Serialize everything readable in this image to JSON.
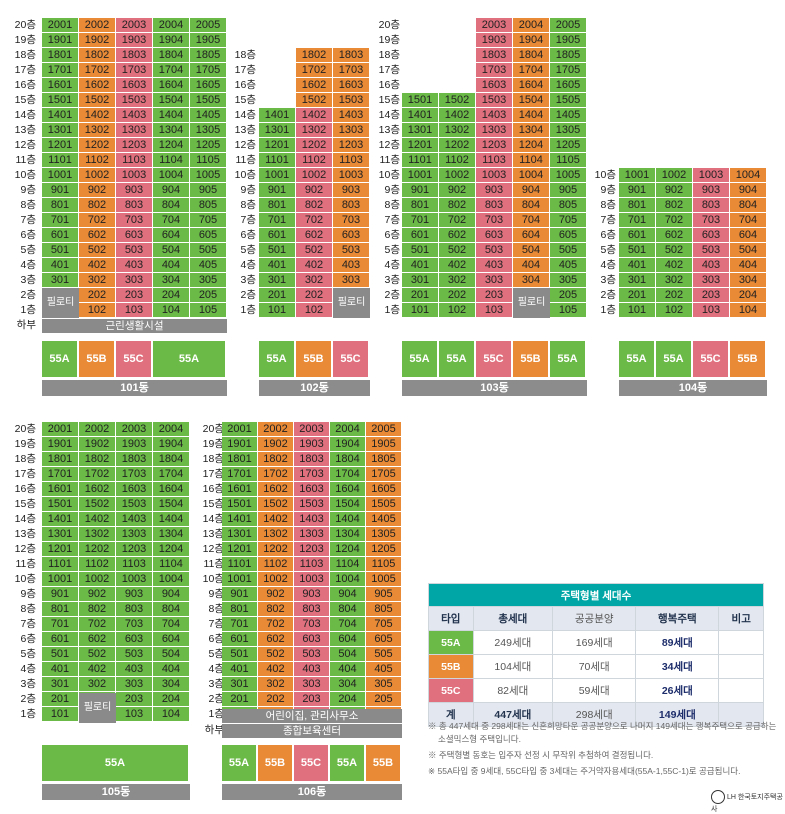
{
  "colors": {
    "55A": "#6bba47",
    "55B": "#e88a36",
    "55C": "#e0707e",
    "base": "#8a8a8a",
    "table_head": "#00a6a6"
  },
  "buildings": [
    {
      "id": "101",
      "label": "101동",
      "floors": 20,
      "cols": 4,
      "types": [
        "55A",
        "55B",
        "55C",
        "55A"
      ],
      "colors_by_floor": {
        "20": [
          "55A",
          "55B",
          "55C",
          "55A",
          "55A"
        ]
      },
      "units": [
        "01",
        "02",
        "03",
        "04",
        "05"
      ],
      "piloti": [
        {
          "floor": 2,
          "col": 0
        }
      ],
      "base": "근린생활시설",
      "base_label": "하부"
    },
    {
      "id": "102",
      "label": "102동",
      "floors": 18,
      "cols": 3,
      "types": [
        "55A",
        "55B",
        "55C"
      ]
    },
    {
      "id": "103",
      "label": "103동",
      "floors": 20,
      "cols": 5,
      "types": [
        "55A",
        "55A",
        "55C",
        "55B",
        "55A"
      ]
    },
    {
      "id": "104",
      "label": "104동",
      "floors": 10,
      "cols": 4,
      "types": [
        "55A",
        "55A",
        "55C",
        "55B"
      ]
    },
    {
      "id": "105",
      "label": "105동",
      "floors": 20,
      "cols": 4,
      "types": [
        "55A"
      ]
    },
    {
      "id": "106",
      "label": "106동",
      "floors": 20,
      "cols": 5,
      "types": [
        "55A",
        "55B",
        "55C",
        "55A",
        "55B"
      ],
      "base_top": "어린이집, 관리사무소",
      "base_bottom": "종합보육센터",
      "base_label": "하부"
    }
  ],
  "piloti_label": "필로티",
  "floor_suffix": "층",
  "summary": {
    "title": "주택형별 세대수",
    "columns": [
      "타입",
      "총세대",
      "공공분양",
      "행복주택",
      "비고"
    ],
    "rows": [
      {
        "type": "55A",
        "total": "249세대",
        "public": "169세대",
        "happy": "89세대",
        "note": ""
      },
      {
        "type": "55B",
        "total": "104세대",
        "public": "70세대",
        "happy": "34세대",
        "note": ""
      },
      {
        "type": "55C",
        "total": "82세대",
        "public": "59세대",
        "happy": "26세대",
        "note": ""
      },
      {
        "type": "계",
        "total": "447세대",
        "public": "298세대",
        "happy": "149세대",
        "note": ""
      }
    ]
  },
  "notes": [
    "※ 총 447세대 중 298세대는 신혼희망타운 공공분양으로 나머지 149세대는 행복주택으로 공급하는 소셜믹스형 주택입니다.",
    "※ 주택형별 동호는 입주자 선정 시 무작위 추첨하여 결정됩니다.",
    "※ 55A타입 중 9세대, 55C타입 중 3세대는 주거약자용세대(55A-1,55C-1)로 공급됩니다."
  ],
  "logo_text": "LH 한국토지주택공사"
}
